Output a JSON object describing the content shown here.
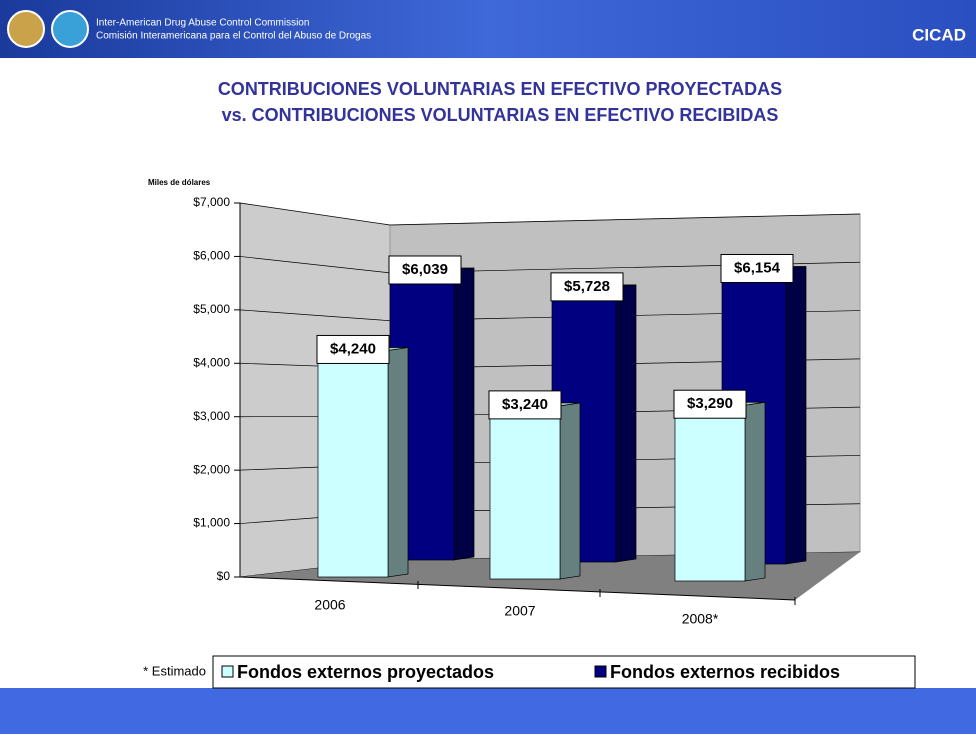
{
  "header": {
    "org_en": "Inter-American Drug Abuse Control Commission",
    "org_es": "Comisión Interamericana para el Control del Abuso de Drogas",
    "brand": "CICAD"
  },
  "chart_data": {
    "type": "bar3d",
    "title": [
      "CONTRIBUCIONES VOLUNTARIAS EN EFECTIVO PROYECTADAS",
      "vs. CONTRIBUCIONES VOLUNTARIAS EN EFECTIVO RECIBIDAS"
    ],
    "y_label": "Miles de dólares",
    "categories": [
      "2006",
      "2007",
      "2008*"
    ],
    "series": [
      {
        "name": "Fondos externos proyectados",
        "color": "#ccffff",
        "values": [
          4240,
          3240,
          3290
        ],
        "value_labels": [
          "$4,240",
          "$3,240",
          "$3,290"
        ]
      },
      {
        "name": "Fondos externos recibidos",
        "color": "#000080",
        "values": [
          6039,
          5728,
          6154
        ],
        "value_labels": [
          "$6,039",
          "$5,728",
          "$6,154"
        ]
      }
    ],
    "ylim": [
      0,
      7000
    ],
    "yticks": [
      {
        "value": 0,
        "label": "$0"
      },
      {
        "value": 1000,
        "label": "$1,000"
      },
      {
        "value": 2000,
        "label": "$2,000"
      },
      {
        "value": 3000,
        "label": "$3,000"
      },
      {
        "value": 4000,
        "label": "$4,000"
      },
      {
        "value": 5000,
        "label": "$5,000"
      },
      {
        "value": 6000,
        "label": "$6,000"
      },
      {
        "value": 7000,
        "label": "$7,000"
      }
    ],
    "grid": true,
    "note": "* Estimado"
  }
}
